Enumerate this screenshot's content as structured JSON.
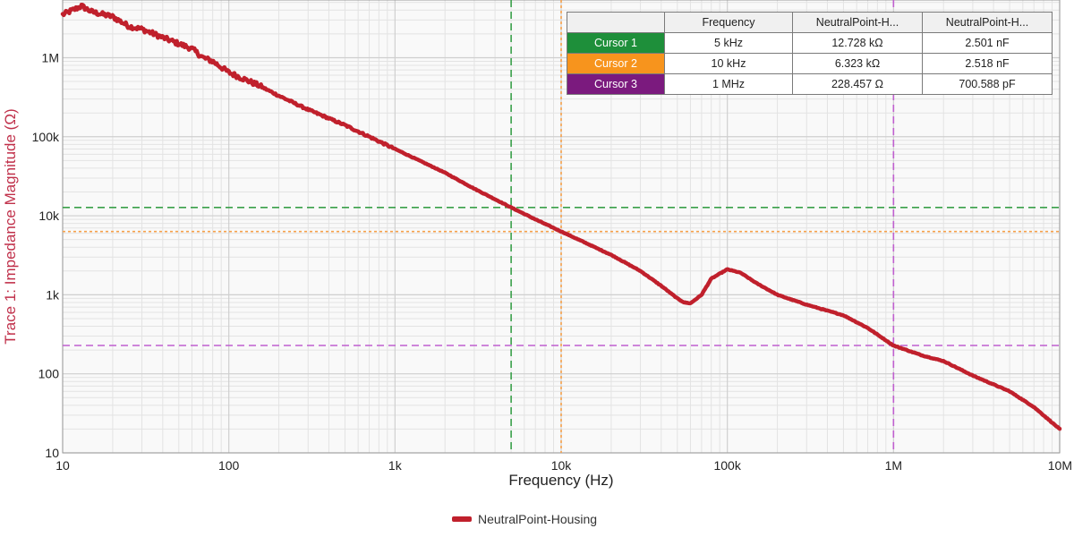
{
  "chart_data": {
    "type": "line",
    "xlabel": "Frequency (Hz)",
    "ylabel": "Trace 1: Impedance Magnitude (Ω)",
    "xscale": "log",
    "yscale": "log",
    "xlim": [
      10,
      10000000
    ],
    "ylim": [
      10,
      6000000
    ],
    "grid": true,
    "legend_position": "bottom-center",
    "x_ticks": [
      {
        "value": 10,
        "label": "10"
      },
      {
        "value": 100,
        "label": "100"
      },
      {
        "value": 1000,
        "label": "1k"
      },
      {
        "value": 10000,
        "label": "10k"
      },
      {
        "value": 100000,
        "label": "100k"
      },
      {
        "value": 1000000,
        "label": "1M"
      },
      {
        "value": 10000000,
        "label": "10M"
      }
    ],
    "y_ticks": [
      {
        "value": 10,
        "label": "10"
      },
      {
        "value": 100,
        "label": "100"
      },
      {
        "value": 1000,
        "label": "1k"
      },
      {
        "value": 10000,
        "label": "10k"
      },
      {
        "value": 100000,
        "label": "100k"
      },
      {
        "value": 1000000,
        "label": "1M"
      }
    ],
    "series": [
      {
        "name": "NeutralPoint-Housing",
        "color": "#c0202c",
        "x": [
          10,
          13,
          15,
          20,
          25,
          30,
          40,
          50,
          60,
          70,
          80,
          100,
          150,
          200,
          300,
          500,
          700,
          1000,
          2000,
          3000,
          5000,
          7000,
          10000,
          20000,
          30000,
          40000,
          50000,
          55000,
          60000,
          70000,
          80000,
          100000,
          120000,
          150000,
          200000,
          300000,
          500000,
          700000,
          1000000,
          1500000,
          2000000,
          3000000,
          5000000,
          7000000,
          10000000
        ],
        "y": [
          3500000,
          4500000,
          3800000,
          3300000,
          2500000,
          2300000,
          1800000,
          1500000,
          1300000,
          1000000,
          900000,
          650000,
          450000,
          330000,
          220000,
          140000,
          100000,
          70000,
          35000,
          22000,
          12728,
          9000,
          6323,
          3200,
          2000,
          1300,
          900,
          800,
          780,
          1000,
          1600,
          2100,
          1900,
          1400,
          1000,
          750,
          550,
          380,
          228,
          170,
          145,
          95,
          60,
          38,
          20
        ]
      }
    ],
    "cursors": [
      {
        "name": "Cursor 1",
        "color": "#1e8f3a",
        "freq": 5000,
        "impedance": 12728
      },
      {
        "name": "Cursor 2",
        "color": "#f7941d",
        "freq": 10000,
        "impedance": 6323
      },
      {
        "name": "Cursor 3",
        "color": "#7b1a7e",
        "freq": 1000000,
        "impedance": 228.457
      }
    ]
  },
  "cursor_table": {
    "headers": [
      "",
      "Frequency",
      "NeutralPoint-H...",
      "NeutralPoint-H..."
    ],
    "rows": [
      {
        "name": "Cursor 1",
        "color": "#1e8f3a",
        "frequency": "5 kHz",
        "value1": "12.728 kΩ",
        "value2": "2.501 nF"
      },
      {
        "name": "Cursor 2",
        "color": "#f7941d",
        "frequency": "10 kHz",
        "value1": "6.323 kΩ",
        "value2": "2.518 nF"
      },
      {
        "name": "Cursor 3",
        "color": "#7b1a7e",
        "frequency": "1 MHz",
        "value1": "228.457 Ω",
        "value2": "700.588 pF"
      }
    ]
  },
  "legend": {
    "label": "NeutralPoint-Housing",
    "color": "#c0202c"
  },
  "colors": {
    "ylabel": "#c0304a",
    "grid": "#cfcfcf",
    "grid_minor": "#e3e3e3",
    "plot_bg": "#f9f9f9"
  }
}
